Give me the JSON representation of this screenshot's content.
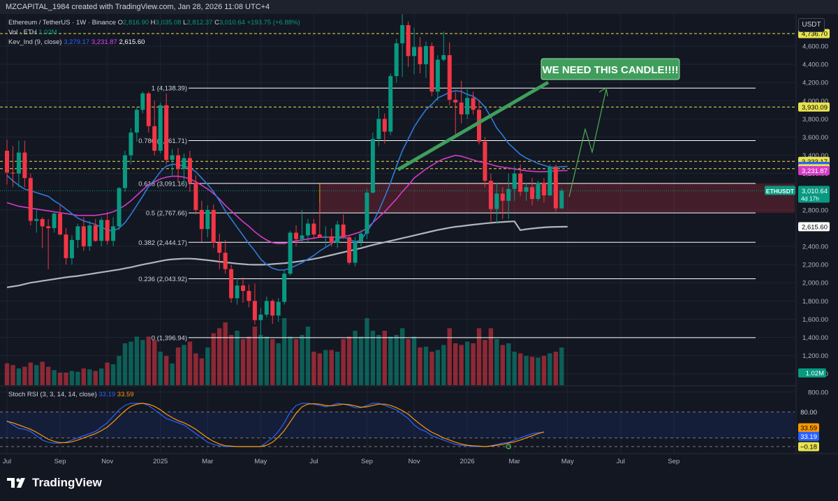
{
  "header": {
    "text": "MZCAPITAL_1984 created with TradingView.com, Jan 28, 2026 11:08 UTC+4"
  },
  "legend": {
    "symbol": "Ethereum / TetherUS · 1W · Binance",
    "o_label": "O",
    "o": "2,816.90",
    "h_label": "H",
    "h": "3,035.08",
    "l_label": "L",
    "l": "2,812.37",
    "c_label": "C",
    "c": "3,010.64",
    "change": "+193.75 (+6.88%)",
    "vol_label": "Vol · ETH",
    "vol": "1.02M",
    "ind_label": "Kev_Ind (9, close)",
    "ind1": "3,279.17",
    "ind2": "3,231.87",
    "ind3": "2,615.60"
  },
  "stoch_legend": {
    "label": "Stoch RSI (3, 3, 14, 14, close)",
    "k": "33.19",
    "d": "33.59"
  },
  "currency_button": "USDT",
  "annotation": {
    "text": "WE NEED THIS CANDLE!!!!"
  },
  "logo": {
    "text": "TradingView"
  },
  "colors": {
    "up": "#089981",
    "down": "#f23645",
    "ma_fast": "#2f7bd8",
    "ma_mid": "#d63bc6",
    "ma_slow": "#b2b5be",
    "callout": "#3f9e5c",
    "fib": "#ffffff",
    "dash": "#e8e351",
    "stoch_k": "#2962ff",
    "stoch_d": "#ff9800"
  },
  "chart_data": {
    "type": "candlestick",
    "symbol": "ETHUSDT",
    "timeframe": "1W",
    "y_axis": {
      "ticks": [
        "4,600.00",
        "4,400.00",
        "4,200.00",
        "4,000.00",
        "3,800.00",
        "3,600.00",
        "3,400.00",
        "3,200.00",
        "2,800.00",
        "2,400.00",
        "2,200.00",
        "2,000.00",
        "1,800.00",
        "1,600.00",
        "1,400.00",
        "1,200.00",
        "1,000.00",
        "800.00"
      ],
      "tick_values": [
        4600,
        4400,
        4200,
        4000,
        3800,
        3600,
        3400,
        3200,
        2800,
        2400,
        2200,
        2000,
        1800,
        1600,
        1400,
        1200,
        1000,
        800
      ],
      "ylim": [
        800,
        4950
      ]
    },
    "x_axis": {
      "labels": [
        "Jul",
        "Sep",
        "Nov",
        "2025",
        "Mar",
        "May",
        "Jul",
        "Sep",
        "Nov",
        "2026",
        "Mar",
        "May",
        "Jul",
        "Sep"
      ],
      "label_week_index": [
        0,
        9,
        17,
        26,
        34,
        43,
        52,
        61,
        69,
        78,
        86,
        95,
        104,
        113
      ]
    },
    "fib_levels": [
      {
        "label": "1 (4,138.39)",
        "value": 4138.39
      },
      {
        "label": "0.786 (3,561.71)",
        "value": 3561.71
      },
      {
        "label": "0.618 (3,091.16)",
        "value": 3091.16
      },
      {
        "label": "0.5 (2,767.66)",
        "value": 2767.66
      },
      {
        "label": "0.382 (2,444.17)",
        "value": 2444.17
      },
      {
        "label": "0.236 (2,043.92)",
        "value": 2043.92
      },
      {
        "label": "0 (1,396.94)",
        "value": 1396.94
      }
    ],
    "dashed_levels": [
      4736.7,
      3930.09,
      3333.17,
      3252.98
    ],
    "price_badges": [
      {
        "text": "4,736.70",
        "value": 4736.7,
        "bg": "#e8e351",
        "fg": "#000000"
      },
      {
        "text": "3,930.09",
        "value": 3930.09,
        "bg": "#e8e351",
        "fg": "#000000"
      },
      {
        "text": "3,333.17",
        "value": 3333.17,
        "bg": "#e8e351",
        "fg": "#000000"
      },
      {
        "text": "3,279.17",
        "value": 3279.17,
        "bg": "#2962ff",
        "fg": "#ffffff"
      },
      {
        "text": "3,252.98",
        "value": 3252.98,
        "bg": "#e8e351",
        "fg": "#000000"
      },
      {
        "text": "3,231.87",
        "value": 3231.87,
        "bg": "#d63bc6",
        "fg": "#ffffff"
      },
      {
        "text": "2,615.60",
        "value": 2615.6,
        "bg": "#ffffff",
        "fg": "#000000"
      }
    ],
    "last_price": {
      "text": "3,010.64",
      "countdown": "4d 17h",
      "label": "ETHUSDT",
      "value": 3010.64
    },
    "volume_badge": "1.02M",
    "stoch_badges": [
      {
        "text": "80.00",
        "value": 80,
        "bg": "#131722",
        "fg": "#d1d4dc"
      },
      {
        "text": "33.59",
        "value": 33.59,
        "bg": "#ff9800",
        "fg": "#000000"
      },
      {
        "text": "33.19",
        "value": 33.19,
        "bg": "#2962ff",
        "fg": "#ffffff"
      },
      {
        "text": "−0.18",
        "value": -0.18,
        "bg": "#e8e351",
        "fg": "#000000"
      }
    ],
    "zone": {
      "from_week": 53,
      "to": "right",
      "low": 2767.66,
      "high": 3091.16
    },
    "candles": [
      [
        3450,
        3570,
        3080,
        3210
      ],
      [
        3210,
        3500,
        3050,
        3200
      ],
      [
        3200,
        3560,
        3050,
        3430
      ],
      [
        3430,
        3560,
        3050,
        3150
      ],
      [
        3150,
        3200,
        2630,
        2680
      ],
      [
        2680,
        2810,
        2550,
        2700
      ],
      [
        2700,
        2720,
        2380,
        2620
      ],
      [
        2620,
        2700,
        2150,
        2600
      ],
      [
        2600,
        2780,
        2550,
        2760
      ],
      [
        2760,
        2850,
        2520,
        2530
      ],
      [
        2530,
        2600,
        2200,
        2270
      ],
      [
        2270,
        2520,
        2200,
        2470
      ],
      [
        2470,
        2650,
        2380,
        2620
      ],
      [
        2620,
        2720,
        2350,
        2400
      ],
      [
        2400,
        2680,
        2350,
        2630
      ],
      [
        2630,
        2700,
        2450,
        2460
      ],
      [
        2460,
        2720,
        2400,
        2690
      ],
      [
        2690,
        2780,
        2420,
        2460
      ],
      [
        2460,
        2720,
        2400,
        2620
      ],
      [
        2620,
        3050,
        2580,
        3040
      ],
      [
        3040,
        3450,
        3000,
        3400
      ],
      [
        3400,
        3700,
        3300,
        3650
      ],
      [
        3650,
        3930,
        3550,
        3900
      ],
      [
        3900,
        4100,
        3860,
        4080
      ],
      [
        4080,
        4100,
        3650,
        3720
      ],
      [
        3720,
        4000,
        3400,
        3450
      ],
      [
        3450,
        3980,
        3420,
        3950
      ],
      [
        3950,
        4080,
        3300,
        3350
      ],
      [
        3350,
        3470,
        3180,
        3400
      ],
      [
        3400,
        3480,
        3100,
        3250
      ],
      [
        3250,
        3420,
        3070,
        3370
      ],
      [
        3370,
        3450,
        3000,
        3100
      ],
      [
        3100,
        3180,
        2750,
        2800
      ],
      [
        2800,
        2900,
        2450,
        2590
      ],
      [
        2590,
        2850,
        2500,
        2800
      ],
      [
        2800,
        2860,
        2380,
        2440
      ],
      [
        2440,
        2540,
        2150,
        2330
      ],
      [
        2330,
        2470,
        2100,
        2150
      ],
      [
        2150,
        2200,
        1780,
        1830
      ],
      [
        1830,
        2050,
        1760,
        1970
      ],
      [
        1970,
        2060,
        1780,
        1910
      ],
      [
        1910,
        1980,
        1730,
        1800
      ],
      [
        1800,
        1990,
        1540,
        1590
      ],
      [
        1590,
        1720,
        1380,
        1650
      ],
      [
        1650,
        1850,
        1620,
        1800
      ],
      [
        1800,
        1820,
        1550,
        1640
      ],
      [
        1640,
        1830,
        1570,
        1790
      ],
      [
        1790,
        2140,
        1760,
        2100
      ],
      [
        2100,
        2570,
        2080,
        2550
      ],
      [
        2550,
        2630,
        2400,
        2480
      ],
      [
        2480,
        2800,
        2450,
        2520
      ],
      [
        2520,
        2700,
        2450,
        2650
      ],
      [
        2650,
        2700,
        2480,
        2530
      ],
      [
        2530,
        2880,
        2500,
        2500
      ],
      [
        2500,
        2620,
        2400,
        2510
      ],
      [
        2510,
        2600,
        2400,
        2440
      ],
      [
        2440,
        2680,
        2380,
        2640
      ],
      [
        2640,
        2750,
        2480,
        2500
      ],
      [
        2500,
        2520,
        2200,
        2220
      ],
      [
        2220,
        2500,
        2180,
        2450
      ],
      [
        2450,
        2580,
        2400,
        2540
      ],
      [
        2540,
        3030,
        2480,
        2990
      ],
      [
        2990,
        3650,
        2980,
        3580
      ],
      [
        3580,
        3940,
        3500,
        3800
      ],
      [
        3800,
        3860,
        3530,
        3660
      ],
      [
        3660,
        4300,
        3620,
        4270
      ],
      [
        4270,
        4680,
        4200,
        4630
      ],
      [
        4630,
        4950,
        4260,
        4830
      ],
      [
        4830,
        4870,
        4370,
        4490
      ],
      [
        4490,
        4800,
        4290,
        4590
      ],
      [
        4590,
        4700,
        4300,
        4400
      ],
      [
        4400,
        4650,
        4250,
        4600
      ],
      [
        4600,
        4640,
        4050,
        4100
      ],
      [
        4100,
        4500,
        4000,
        4450
      ],
      [
        4450,
        4760,
        4430,
        4500
      ],
      [
        4500,
        4640,
        3950,
        4010
      ],
      [
        4010,
        4100,
        3600,
        3980
      ],
      [
        3980,
        4220,
        3750,
        3850
      ],
      [
        3850,
        4150,
        3800,
        4030
      ],
      [
        4030,
        4100,
        3850,
        3900
      ],
      [
        3900,
        4010,
        3520,
        3550
      ],
      [
        3550,
        3600,
        3050,
        3120
      ],
      [
        3120,
        3200,
        2660,
        2810
      ],
      [
        2810,
        3100,
        2650,
        2980
      ],
      [
        2980,
        3050,
        2700,
        2900
      ],
      [
        2900,
        3200,
        2700,
        3030
      ],
      [
        3030,
        3280,
        2900,
        3200
      ],
      [
        3200,
        3300,
        2950,
        3000
      ],
      [
        3000,
        3100,
        2900,
        3050
      ],
      [
        3050,
        3150,
        2850,
        2920
      ],
      [
        2920,
        3120,
        2900,
        3100
      ],
      [
        3100,
        3150,
        2880,
        2960
      ],
      [
        2960,
        3300,
        2950,
        3270
      ],
      [
        3270,
        3300,
        2780,
        2817
      ],
      [
        2817,
        3035,
        2812,
        3011
      ]
    ],
    "volume_rel": [
      0.26,
      0.24,
      0.2,
      0.22,
      0.27,
      0.24,
      0.28,
      0.22,
      0.18,
      0.15,
      0.15,
      0.17,
      0.16,
      0.2,
      0.19,
      0.17,
      0.2,
      0.27,
      0.25,
      0.35,
      0.5,
      0.52,
      0.58,
      0.54,
      0.58,
      0.54,
      0.4,
      0.35,
      0.26,
      0.45,
      0.48,
      0.52,
      0.38,
      0.32,
      0.45,
      0.62,
      0.68,
      0.75,
      0.6,
      0.65,
      0.55,
      0.58,
      0.7,
      0.6,
      0.58,
      0.55,
      0.5,
      0.8,
      0.58,
      0.55,
      0.6,
      0.7,
      0.4,
      0.38,
      0.42,
      0.42,
      0.4,
      0.55,
      0.58,
      0.65,
      0.58,
      0.8,
      0.65,
      0.6,
      0.65,
      0.58,
      0.6,
      0.68,
      0.55,
      0.58,
      0.45,
      0.46,
      0.4,
      0.42,
      0.48,
      0.68,
      0.5,
      0.48,
      0.52,
      0.5,
      0.68,
      0.54,
      0.68,
      0.55,
      0.48,
      0.5,
      0.4,
      0.38,
      0.35,
      0.34,
      0.33,
      0.35,
      0.38,
      0.4,
      0.45,
      0.28
    ],
    "stoch": {
      "k": [
        60,
        50,
        42,
        40,
        35,
        25,
        15,
        10,
        8,
        8,
        10,
        15,
        20,
        25,
        30,
        35,
        45,
        55,
        70,
        85,
        95,
        100,
        100,
        100,
        95,
        85,
        75,
        65,
        60,
        55,
        50,
        40,
        30,
        20,
        10,
        5,
        2,
        0,
        0,
        0,
        0,
        0,
        0,
        0,
        10,
        20,
        35,
        55,
        80,
        95,
        100,
        100,
        98,
        95,
        92,
        95,
        100,
        98,
        95,
        90,
        90,
        95,
        100,
        100,
        95,
        90,
        85,
        75,
        65,
        50,
        40,
        35,
        25,
        20,
        15,
        10,
        5,
        3,
        2,
        0,
        0,
        0,
        2,
        5,
        8,
        10,
        15,
        20,
        25,
        30,
        32,
        33
      ],
      "d": [
        58,
        55,
        50,
        45,
        40,
        33,
        25,
        17,
        12,
        9,
        9,
        11,
        15,
        20,
        25,
        30,
        37,
        45,
        57,
        70,
        83,
        93,
        98,
        100,
        98,
        93,
        85,
        75,
        67,
        60,
        55,
        48,
        40,
        30,
        20,
        12,
        6,
        2,
        1,
        0,
        0,
        0,
        0,
        0,
        3,
        10,
        22,
        37,
        57,
        77,
        92,
        98,
        99,
        98,
        95,
        94,
        96,
        98,
        97,
        94,
        91,
        92,
        95,
        98,
        98,
        95,
        90,
        83,
        75,
        63,
        52,
        42,
        33,
        27,
        20,
        15,
        10,
        6,
        3,
        2,
        1,
        0,
        1,
        3,
        5,
        8,
        11,
        15,
        20,
        25,
        30,
        34
      ]
    },
    "ma_fast": [
      3180,
      3120,
      3070,
      3030,
      3010,
      2990,
      2970,
      2950,
      2900,
      2860,
      2810,
      2760,
      2710,
      2680,
      2660,
      2640,
      2610,
      2580,
      2570,
      2600,
      2660,
      2750,
      2850,
      2950,
      3060,
      3130,
      3220,
      3280,
      3300,
      3300,
      3280,
      3260,
      3220,
      3150,
      3080,
      3000,
      2900,
      2790,
      2700,
      2610,
      2520,
      2430,
      2350,
      2260,
      2200,
      2160,
      2140,
      2140,
      2160,
      2190,
      2220,
      2260,
      2300,
      2350,
      2390,
      2430,
      2480,
      2500,
      2480,
      2450,
      2470,
      2560,
      2660,
      2790,
      2940,
      3100,
      3280,
      3450,
      3580,
      3710,
      3810,
      3900,
      3960,
      4030,
      4060,
      4090,
      4110,
      4100,
      4070,
      4050,
      4000,
      3930,
      3820,
      3700,
      3620,
      3530,
      3470,
      3410,
      3370,
      3340,
      3310,
      3290,
      3270,
      3270,
      3275,
      3279
    ],
    "ma_mid": [
      2880,
      2860,
      2840,
      2830,
      2820,
      2810,
      2800,
      2790,
      2780,
      2770,
      2760,
      2750,
      2740,
      2740,
      2740,
      2740,
      2750,
      2760,
      2780,
      2810,
      2850,
      2900,
      2960,
      3020,
      3080,
      3110,
      3140,
      3160,
      3170,
      3170,
      3160,
      3140,
      3110,
      3070,
      3030,
      2980,
      2920,
      2850,
      2790,
      2730,
      2670,
      2620,
      2560,
      2510,
      2470,
      2440,
      2430,
      2430,
      2450,
      2460,
      2470,
      2480,
      2490,
      2500,
      2500,
      2500,
      2500,
      2510,
      2520,
      2540,
      2560,
      2600,
      2660,
      2720,
      2780,
      2850,
      2920,
      3000,
      3070,
      3150,
      3200,
      3250,
      3290,
      3330,
      3360,
      3380,
      3400,
      3390,
      3370,
      3350,
      3330,
      3320,
      3300,
      3280,
      3270,
      3260,
      3250,
      3240,
      3230,
      3225,
      3220,
      3220,
      3225,
      3228,
      3231,
      3232
    ],
    "ma_slow": [
      1950,
      1960,
      1970,
      1985,
      2000,
      2010,
      2020,
      2030,
      2040,
      2050,
      2060,
      2068,
      2075,
      2085,
      2095,
      2105,
      2115,
      2125,
      2135,
      2145,
      2158,
      2170,
      2185,
      2200,
      2212,
      2225,
      2238,
      2250,
      2258,
      2262,
      2265,
      2265,
      2262,
      2255,
      2248,
      2240,
      2232,
      2225,
      2218,
      2210,
      2205,
      2200,
      2198,
      2198,
      2200,
      2205,
      2210,
      2215,
      2222,
      2230,
      2240,
      2250,
      2262,
      2275,
      2290,
      2305,
      2320,
      2335,
      2350,
      2365,
      2380,
      2398,
      2415,
      2430,
      2445,
      2460,
      2475,
      2490,
      2505,
      2520,
      2535,
      2550,
      2565,
      2580,
      2592,
      2605,
      2615,
      2622,
      2630,
      2638,
      2645,
      2652,
      2658,
      2663,
      2668,
      2672,
      2675,
      2578,
      2588,
      2596,
      2603,
      2608,
      2612,
      2614,
      2615,
      2616
    ]
  }
}
